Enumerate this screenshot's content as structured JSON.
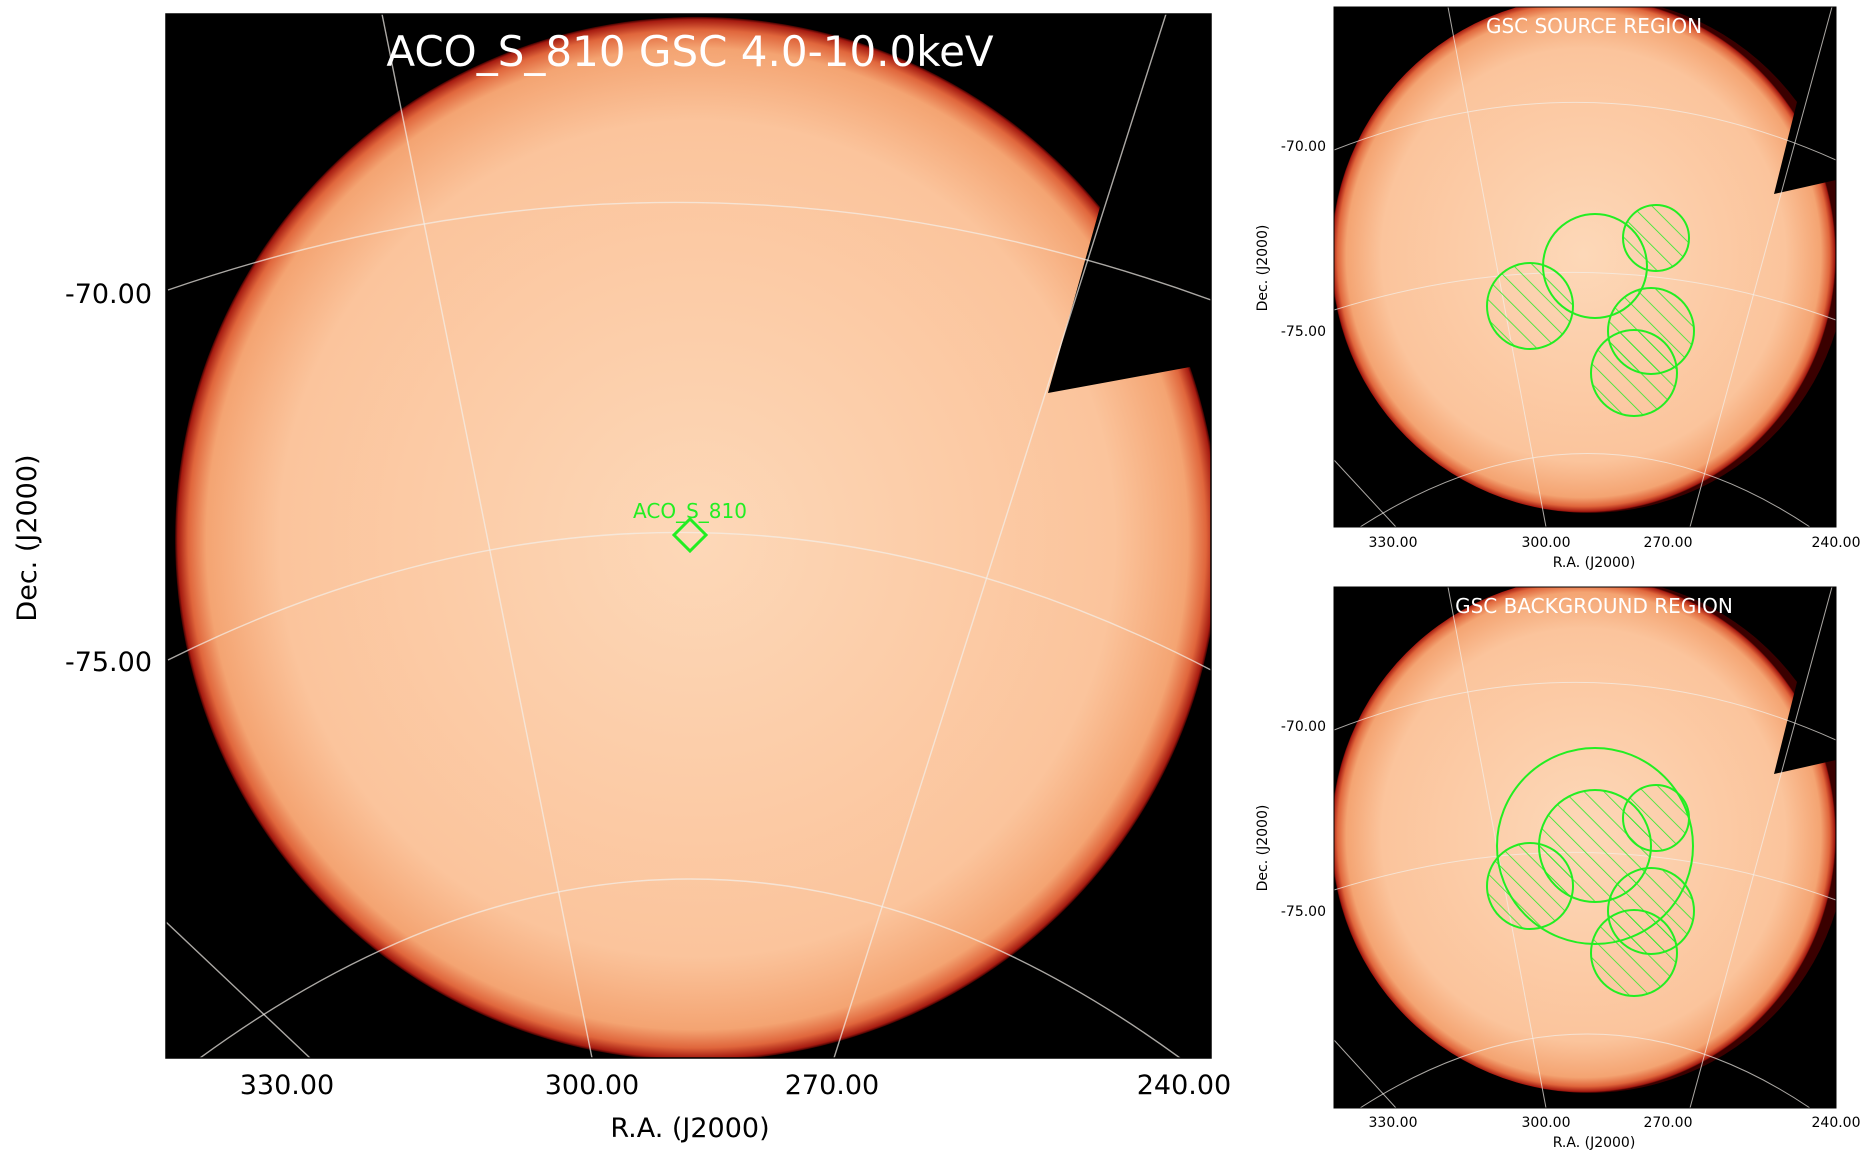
{
  "main": {
    "title": "ACO_S_810 GSC 4.0-10.0keV",
    "source_label": "ACO_S_810",
    "y_ticks": [
      "-70.00",
      "-75.00"
    ],
    "x_ticks": [
      "330.00",
      "300.00",
      "270.00",
      "240.00"
    ],
    "xlabel": "R.A. (J2000)",
    "ylabel": "Dec. (J2000)",
    "grid": true
  },
  "source_panel": {
    "title": "GSC SOURCE REGION",
    "y_ticks": [
      "-70.00",
      "-75.00"
    ],
    "x_ticks": [
      "330.00",
      "300.00",
      "270.00",
      "240.00"
    ],
    "xlabel": "R.A. (J2000)",
    "ylabel": "Dec. (J2000)"
  },
  "background_panel": {
    "title": "GSC BACKGROUND REGION",
    "y_ticks": [
      "-70.00",
      "-75.00"
    ],
    "x_ticks": [
      "330.00",
      "300.00",
      "270.00",
      "240.00"
    ],
    "xlabel": "R.A. (J2000)",
    "ylabel": "Dec. (J2000)"
  },
  "colors": {
    "region_green": "#22ee22",
    "image_fill": "#fbc39a",
    "image_edge": "#c8321e",
    "sky_bg": "#000000",
    "grid": "#f4f0ea",
    "title_text": "#ffffff"
  },
  "icons": {
    "source_marker": "diamond-icon"
  }
}
